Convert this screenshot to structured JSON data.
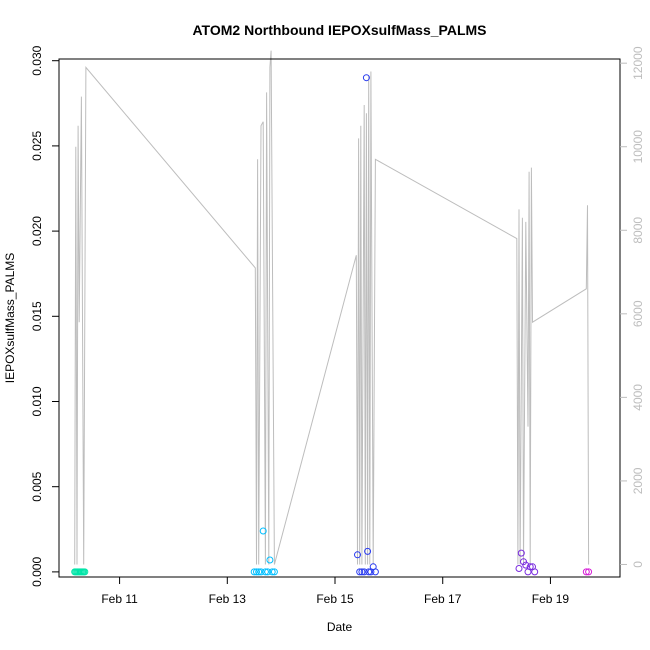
{
  "chart_data": {
    "type": "scatter",
    "title": "ATOM2 Northbound IEPOXsulfMass_PALMS",
    "xlabel": "Date",
    "ylabel": "IEPOXsulfMass_PALMS",
    "xlim": [
      "2017-02-09 21:00",
      "2017-02-20 07:00"
    ],
    "ylim": [
      -0.0003,
      0.0301
    ],
    "y_ticks": [
      "0.000",
      "0.005",
      "0.010",
      "0.015",
      "0.020",
      "0.025",
      "0.030"
    ],
    "x_ticks": [
      {
        "label": "Feb 11",
        "date": "2017-02-11 00:00"
      },
      {
        "label": "Feb 13",
        "date": "2017-02-13 00:00"
      },
      {
        "label": "Feb 15",
        "date": "2017-02-15 00:00"
      },
      {
        "label": "Feb 17",
        "date": "2017-02-17 00:00"
      },
      {
        "label": "Feb 19",
        "date": "2017-02-19 00:00"
      }
    ],
    "y2lim": [
      -300,
      12100
    ],
    "y2_ticks": [
      "0",
      "2000",
      "4000",
      "6000",
      "8000",
      "10000",
      "12000"
    ],
    "grid": false,
    "legend": "none",
    "line_color": "#bdbdbd",
    "series": [
      {
        "color": "#00e5a8",
        "points": [
          [
            "2017-02-10 04:00",
            0
          ],
          [
            "2017-02-10 04:30",
            0
          ],
          [
            "2017-02-10 05:00",
            0
          ],
          [
            "2017-02-10 05:30",
            0
          ],
          [
            "2017-02-10 06:00",
            0
          ],
          [
            "2017-02-10 06:30",
            0
          ],
          [
            "2017-02-10 07:00",
            0
          ],
          [
            "2017-02-10 07:30",
            0
          ],
          [
            "2017-02-10 08:00",
            0
          ],
          [
            "2017-02-10 08:30",
            0
          ]
        ]
      },
      {
        "color": "#00bfff",
        "points": [
          [
            "2017-02-13 12:00",
            0
          ],
          [
            "2017-02-13 13:00",
            0
          ],
          [
            "2017-02-13 14:00",
            0
          ],
          [
            "2017-02-13 15:00",
            0
          ],
          [
            "2017-02-13 16:00",
            0.0024
          ],
          [
            "2017-02-13 17:00",
            0
          ],
          [
            "2017-02-13 18:00",
            0
          ],
          [
            "2017-02-13 19:00",
            0.0007
          ],
          [
            "2017-02-13 20:00",
            0
          ],
          [
            "2017-02-13 21:00",
            0
          ]
        ]
      },
      {
        "color": "#2a3cf0",
        "points": [
          [
            "2017-02-15 10:00",
            0.001
          ],
          [
            "2017-02-15 11:00",
            0
          ],
          [
            "2017-02-15 12:00",
            0
          ],
          [
            "2017-02-15 13:00",
            0
          ],
          [
            "2017-02-15 14:00",
            0.029
          ],
          [
            "2017-02-15 14:30",
            0.0012
          ],
          [
            "2017-02-15 15:00",
            0
          ],
          [
            "2017-02-15 16:00",
            0
          ],
          [
            "2017-02-15 17:00",
            0.0003
          ],
          [
            "2017-02-15 18:00",
            0
          ]
        ]
      },
      {
        "color": "#7a2ce0",
        "points": [
          [
            "2017-02-18 10:00",
            0.0002
          ],
          [
            "2017-02-18 11:00",
            0.0011
          ],
          [
            "2017-02-18 12:00",
            0.0006
          ],
          [
            "2017-02-18 13:00",
            0.0004
          ],
          [
            "2017-02-18 14:00",
            0
          ],
          [
            "2017-02-18 15:00",
            0.0003
          ],
          [
            "2017-02-18 16:00",
            0.0003
          ],
          [
            "2017-02-18 17:00",
            0
          ]
        ]
      },
      {
        "color": "#d61fd6",
        "points": [
          [
            "2017-02-19 16:00",
            0
          ],
          [
            "2017-02-19 17:00",
            0
          ]
        ]
      }
    ],
    "secondary_line": [
      [
        "2017-02-10 04:00",
        0
      ],
      [
        "2017-02-10 04:30",
        10000
      ],
      [
        "2017-02-10 05:00",
        0
      ],
      [
        "2017-02-10 05:30",
        10500
      ],
      [
        "2017-02-10 06:00",
        5800
      ],
      [
        "2017-02-10 07:00",
        11200
      ],
      [
        "2017-02-10 08:00",
        0
      ],
      [
        "2017-02-10 09:00",
        11900
      ],
      [
        "2017-02-13 12:30",
        7100
      ],
      [
        "2017-02-13 13:00",
        0
      ],
      [
        "2017-02-13 13:30",
        9700
      ],
      [
        "2017-02-13 14:00",
        0
      ],
      [
        "2017-02-13 15:00",
        10500
      ],
      [
        "2017-02-13 16:00",
        10600
      ],
      [
        "2017-02-13 17:00",
        0
      ],
      [
        "2017-02-13 17:30",
        11300
      ],
      [
        "2017-02-13 18:30",
        0
      ],
      [
        "2017-02-13 19:00",
        11900
      ],
      [
        "2017-02-13 19:30",
        12300
      ],
      [
        "2017-02-13 21:00",
        0
      ],
      [
        "2017-02-15 09:30",
        7400
      ],
      [
        "2017-02-15 10:00",
        0
      ],
      [
        "2017-02-15 10:30",
        10200
      ],
      [
        "2017-02-15 11:00",
        0
      ],
      [
        "2017-02-15 11:30",
        10500
      ],
      [
        "2017-02-15 12:00",
        0
      ],
      [
        "2017-02-15 13:00",
        11000
      ],
      [
        "2017-02-15 13:30",
        0
      ],
      [
        "2017-02-15 14:00",
        10800
      ],
      [
        "2017-02-15 14:30",
        0
      ],
      [
        "2017-02-15 15:00",
        11700
      ],
      [
        "2017-02-15 15:30",
        0
      ],
      [
        "2017-02-15 16:00",
        11800
      ],
      [
        "2017-02-15 17:00",
        0
      ],
      [
        "2017-02-15 18:00",
        9700
      ],
      [
        "2017-02-18 09:00",
        7800
      ],
      [
        "2017-02-18 09:30",
        0
      ],
      [
        "2017-02-18 10:00",
        8500
      ],
      [
        "2017-02-18 10:30",
        0
      ],
      [
        "2017-02-18 11:30",
        8300
      ],
      [
        "2017-02-18 12:00",
        0
      ],
      [
        "2017-02-18 13:00",
        8200
      ],
      [
        "2017-02-18 14:00",
        3300
      ],
      [
        "2017-02-18 14:30",
        9400
      ],
      [
        "2017-02-18 15:00",
        0
      ],
      [
        "2017-02-18 15:30",
        9500
      ],
      [
        "2017-02-18 16:00",
        5800
      ],
      [
        "2017-02-19 16:00",
        6600
      ],
      [
        "2017-02-19 16:30",
        8600
      ],
      [
        "2017-02-19 17:00",
        0
      ]
    ]
  }
}
